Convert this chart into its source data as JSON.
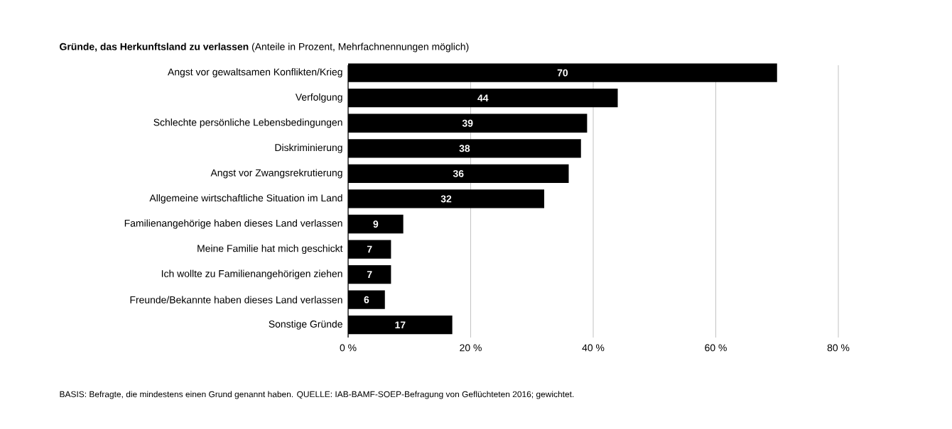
{
  "chart_data": {
    "type": "bar",
    "orientation": "horizontal",
    "title": "**Gründe, das Herkunftsland zu verlassen** (Anteile in Prozent, Mehrfachnennungen möglich)",
    "categories": [
      "Angst vor gewaltsamen Konflikten/Krieg",
      "Verfolgung",
      "Schlechte persönliche Lebensbedingungen",
      "Diskriminierung",
      "Angst vor Zwangsrekrutierung",
      "Allgemeine wirtschaftliche Situation im Land",
      "Familienangehörige haben dieses Land verlassen",
      "Meine Familie hat mich geschickt",
      "Ich wollte zu Familienangehörigen ziehen",
      "Freunde/Bekannte haben dieses Land verlassen",
      "Sonstige Gründe"
    ],
    "values": [
      70,
      44,
      39,
      38,
      36,
      32,
      9,
      7,
      7,
      6,
      17
    ],
    "color": "#000000",
    "data_labels": true,
    "xlim": [
      0,
      80
    ],
    "xticks": [
      {
        "value": 0,
        "label": "0 %"
      },
      {
        "value": 20,
        "label": "20 %"
      },
      {
        "value": 40,
        "label": "40 %"
      },
      {
        "value": 60,
        "label": "60 %"
      },
      {
        "value": 80,
        "label": "80 %"
      }
    ],
    "grid": "x",
    "annotations": [
      "BASIS: Befragte, die mindestens einen Grund genannt haben. QUELLE: IAB-BAMF-SOEP-Befragung von Geflüchteten 2016; gewichtet."
    ]
  }
}
